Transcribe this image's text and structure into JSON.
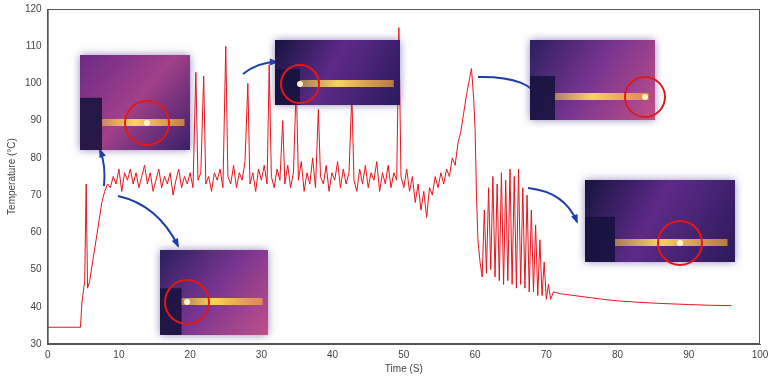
{
  "chart_data": {
    "type": "line",
    "x_label": "Time (S)",
    "y_label": "Temperature (°C)",
    "x": [
      0,
      4.6,
      4.8,
      5.0,
      5.2,
      5.4,
      5.6,
      5.9,
      6.3,
      6.8,
      7.2,
      7.6,
      8.0,
      8.4,
      8.8,
      9.2,
      9.6,
      10.0,
      10.4,
      10.8,
      11.2,
      11.6,
      12.0,
      12.4,
      12.8,
      13.2,
      13.6,
      14.0,
      14.4,
      14.8,
      15.2,
      15.6,
      16.0,
      16.4,
      16.8,
      17.2,
      17.6,
      18.0,
      18.4,
      18.8,
      19.2,
      19.6,
      20.0,
      20.4,
      20.8,
      21.1,
      21.5,
      21.9,
      22.2,
      22.6,
      23.0,
      23.4,
      23.8,
      24.2,
      24.6,
      25.0,
      25.3,
      25.7,
      26.1,
      26.5,
      26.9,
      27.3,
      27.7,
      28.1,
      28.4,
      28.8,
      29.2,
      29.6,
      30.0,
      30.4,
      30.8,
      31.1,
      31.4,
      31.8,
      32.2,
      32.6,
      33.0,
      33.3,
      33.7,
      34.1,
      34.5,
      34.9,
      35.2,
      35.6,
      36.0,
      36.4,
      36.8,
      37.2,
      37.6,
      38.0,
      38.3,
      38.7,
      39.1,
      39.5,
      39.9,
      40.3,
      40.7,
      41.1,
      41.5,
      41.9,
      42.3,
      42.7,
      43.0,
      43.4,
      43.8,
      44.2,
      44.6,
      45.0,
      45.4,
      45.8,
      46.2,
      46.6,
      47.0,
      47.4,
      47.8,
      48.2,
      48.6,
      49.0,
      49.3,
      49.6,
      50.0,
      50.4,
      50.8,
      51.2,
      51.6,
      52.0,
      52.4,
      52.8,
      53.2,
      53.6,
      54.0,
      54.4,
      54.8,
      55.2,
      55.6,
      56.0,
      56.4,
      56.8,
      57.2,
      57.6,
      58.0,
      58.4,
      58.8,
      59.2,
      59.5,
      59.8,
      60.0,
      60.2,
      60.4,
      60.7,
      61.0,
      61.3,
      61.6,
      61.9,
      62.2,
      62.5,
      62.8,
      63.1,
      63.4,
      63.7,
      64.0,
      64.3,
      64.6,
      64.9,
      65.2,
      65.5,
      65.8,
      66.1,
      66.4,
      66.7,
      67.0,
      67.3,
      67.6,
      67.9,
      68.2,
      68.5,
      68.8,
      69.1,
      69.4,
      69.7,
      70.0,
      70.3,
      70.6,
      71.0,
      72.0,
      74.0,
      76.0,
      78.0,
      80.0,
      83.0,
      86.0,
      90.0,
      93.0,
      96.0
    ],
    "values": [
      34.5,
      34.5,
      41,
      44,
      47,
      73,
      45,
      47,
      52,
      58,
      63,
      68,
      71,
      73,
      72,
      75,
      73,
      77,
      71,
      76,
      74,
      77,
      73,
      76,
      72,
      75,
      78,
      73,
      76,
      71,
      74,
      77,
      72,
      75,
      73,
      76,
      70,
      74,
      77,
      72,
      75,
      73,
      76,
      72,
      103,
      74,
      76,
      102,
      73,
      75,
      71,
      76,
      74,
      77,
      72,
      110,
      75,
      73,
      78,
      72,
      76,
      74,
      79,
      100,
      73,
      76,
      71,
      77,
      74,
      78,
      73,
      105,
      75,
      72,
      77,
      74,
      90,
      73,
      78,
      72,
      76,
      100,
      74,
      79,
      71,
      76,
      73,
      80,
      72,
      93,
      75,
      73,
      78,
      71,
      76,
      74,
      79,
      72,
      77,
      73,
      76,
      97,
      74,
      71,
      77,
      73,
      78,
      72,
      76,
      74,
      79,
      71,
      76,
      73,
      78,
      72,
      76,
      74,
      115,
      75,
      72,
      77,
      71,
      75,
      68,
      73,
      66,
      71,
      64,
      72,
      70,
      75,
      72,
      76,
      73,
      77,
      75,
      80,
      78,
      84,
      87,
      92,
      97,
      101,
      104,
      96,
      88,
      70,
      58,
      52,
      48,
      66,
      49,
      72,
      50,
      75,
      48,
      73,
      47,
      76,
      46,
      74,
      47,
      77,
      46,
      75,
      45,
      77,
      46,
      72,
      45,
      70,
      44,
      66,
      44,
      62,
      43,
      58,
      43,
      52,
      42,
      46,
      42,
      44,
      43.5,
      43,
      42.5,
      42,
      41.6,
      41.2,
      40.9,
      40.6,
      40.4,
      40.3
    ],
    "color": "#e8141c",
    "xlim": [
      0,
      100
    ],
    "xticks": [
      0,
      10,
      20,
      30,
      40,
      50,
      60,
      70,
      80,
      90,
      100
    ],
    "ylim": [
      30,
      120
    ],
    "yticks": [
      30,
      40,
      50,
      60,
      70,
      80,
      90,
      100,
      110,
      120
    ],
    "grid": false
  }
}
